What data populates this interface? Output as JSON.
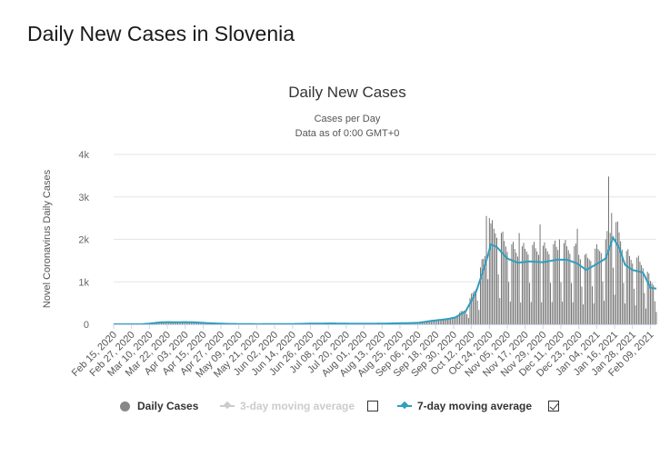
{
  "page": {
    "heading": "Daily New Cases in Slovenia"
  },
  "chart_data": {
    "type": "bar",
    "title": "Daily New Cases",
    "subtitle": "Cases per Day",
    "subtitle2": "Data as of 0:00 GMT+0",
    "ylabel": "Novel Coronavirus Daily Cases",
    "ylim": [
      0,
      4000
    ],
    "y_ticks": [
      0,
      1000,
      2000,
      3000,
      4000
    ],
    "y_tick_labels": [
      "0",
      "1k",
      "2k",
      "3k",
      "4k"
    ],
    "x_start": "2020-02-15",
    "x_end": "2021-02-13",
    "x_tick_labels": [
      "Feb 15, 2020",
      "Feb 27, 2020",
      "Mar 10, 2020",
      "Mar 22, 2020",
      "Apr 03, 2020",
      "Apr 15, 2020",
      "Apr 27, 2020",
      "May 09, 2020",
      "May 21, 2020",
      "Jun 02, 2020",
      "Jun 14, 2020",
      "Jun 26, 2020",
      "Jul 08, 2020",
      "Jul 20, 2020",
      "Aug 01, 2020",
      "Aug 13, 2020",
      "Aug 25, 2020",
      "Sep 06, 2020",
      "Sep 18, 2020",
      "Sep 30, 2020",
      "Oct 12, 2020",
      "Oct 24, 2020",
      "Nov 05, 2020",
      "Nov 17, 2020",
      "Nov 29, 2020",
      "Dec 11, 2020",
      "Dec 23, 2020",
      "Jan 04, 2021",
      "Jan 16, 2021",
      "Jan 28, 2021",
      "Feb 09, 2021"
    ],
    "grid": true,
    "legend_position": "bottom",
    "colors": {
      "bars": "#666666",
      "moving_average": "#2f9fbf",
      "disabled": "#cccccc"
    },
    "series": [
      {
        "name": "Daily Cases",
        "type": "bar",
        "keypoints": [
          [
            "2020-02-15",
            0
          ],
          [
            "2020-03-04",
            0
          ],
          [
            "2020-03-10",
            15
          ],
          [
            "2020-03-16",
            40
          ],
          [
            "2020-03-22",
            55
          ],
          [
            "2020-03-28",
            50
          ],
          [
            "2020-04-03",
            55
          ],
          [
            "2020-04-10",
            45
          ],
          [
            "2020-04-20",
            25
          ],
          [
            "2020-05-01",
            10
          ],
          [
            "2020-05-20",
            3
          ],
          [
            "2020-06-10",
            4
          ],
          [
            "2020-06-25",
            15
          ],
          [
            "2020-07-10",
            22
          ],
          [
            "2020-07-25",
            12
          ],
          [
            "2020-08-10",
            15
          ],
          [
            "2020-08-25",
            25
          ],
          [
            "2020-09-06",
            35
          ],
          [
            "2020-09-15",
            80
          ],
          [
            "2020-09-25",
            120
          ],
          [
            "2020-10-01",
            160
          ],
          [
            "2020-10-08",
            300
          ],
          [
            "2020-10-15",
            750
          ],
          [
            "2020-10-22",
            1500
          ],
          [
            "2020-10-25",
            1900
          ],
          [
            "2020-10-29",
            1850
          ],
          [
            "2020-11-05",
            1550
          ],
          [
            "2020-11-12",
            1450
          ],
          [
            "2020-11-20",
            1500
          ],
          [
            "2020-11-29",
            1480
          ],
          [
            "2020-12-08",
            1520
          ],
          [
            "2020-12-15",
            1530
          ],
          [
            "2020-12-22",
            1450
          ],
          [
            "2020-12-28",
            1280
          ],
          [
            "2021-01-04",
            1450
          ],
          [
            "2021-01-10",
            1600
          ],
          [
            "2021-01-15",
            2050
          ],
          [
            "2021-01-19",
            1800
          ],
          [
            "2021-01-23",
            1400
          ],
          [
            "2021-01-28",
            1300
          ],
          [
            "2021-02-04",
            1200
          ],
          [
            "2021-02-09",
            850
          ],
          [
            "2021-02-13",
            830
          ]
        ],
        "peaks": [
          [
            "2020-10-22",
            2550
          ],
          [
            "2020-10-24",
            2500
          ],
          [
            "2020-11-13",
            2150
          ],
          [
            "2020-11-27",
            2350
          ],
          [
            "2020-12-10",
            2000
          ],
          [
            "2020-12-22",
            2250
          ],
          [
            "2021-01-12",
            3480
          ],
          [
            "2021-01-14",
            2620
          ]
        ]
      },
      {
        "name": "3-day moving average",
        "type": "line",
        "visible": false
      },
      {
        "name": "7-day moving average",
        "type": "line",
        "visible": true,
        "keypoints": [
          [
            "2020-02-15",
            0
          ],
          [
            "2020-03-04",
            0
          ],
          [
            "2020-03-10",
            15
          ],
          [
            "2020-03-16",
            40
          ],
          [
            "2020-03-22",
            52
          ],
          [
            "2020-03-28",
            48
          ],
          [
            "2020-04-03",
            52
          ],
          [
            "2020-04-10",
            44
          ],
          [
            "2020-04-20",
            24
          ],
          [
            "2020-05-01",
            10
          ],
          [
            "2020-05-20",
            3
          ],
          [
            "2020-06-10",
            4
          ],
          [
            "2020-06-25",
            14
          ],
          [
            "2020-07-10",
            20
          ],
          [
            "2020-07-25",
            12
          ],
          [
            "2020-08-10",
            14
          ],
          [
            "2020-08-25",
            24
          ],
          [
            "2020-09-06",
            34
          ],
          [
            "2020-09-15",
            80
          ],
          [
            "2020-09-25",
            120
          ],
          [
            "2020-10-01",
            160
          ],
          [
            "2020-10-08",
            300
          ],
          [
            "2020-10-15",
            750
          ],
          [
            "2020-10-22",
            1500
          ],
          [
            "2020-10-25",
            1880
          ],
          [
            "2020-10-29",
            1820
          ],
          [
            "2020-11-05",
            1550
          ],
          [
            "2020-11-12",
            1450
          ],
          [
            "2020-11-20",
            1480
          ],
          [
            "2020-11-29",
            1460
          ],
          [
            "2020-12-08",
            1520
          ],
          [
            "2020-12-15",
            1520
          ],
          [
            "2020-12-22",
            1430
          ],
          [
            "2020-12-28",
            1280
          ],
          [
            "2021-01-04",
            1420
          ],
          [
            "2021-01-10",
            1550
          ],
          [
            "2021-01-15",
            2040
          ],
          [
            "2021-01-19",
            1800
          ],
          [
            "2021-01-23",
            1400
          ],
          [
            "2021-01-28",
            1280
          ],
          [
            "2021-02-04",
            1220
          ],
          [
            "2021-02-09",
            860
          ],
          [
            "2021-02-13",
            840
          ]
        ]
      }
    ]
  }
}
